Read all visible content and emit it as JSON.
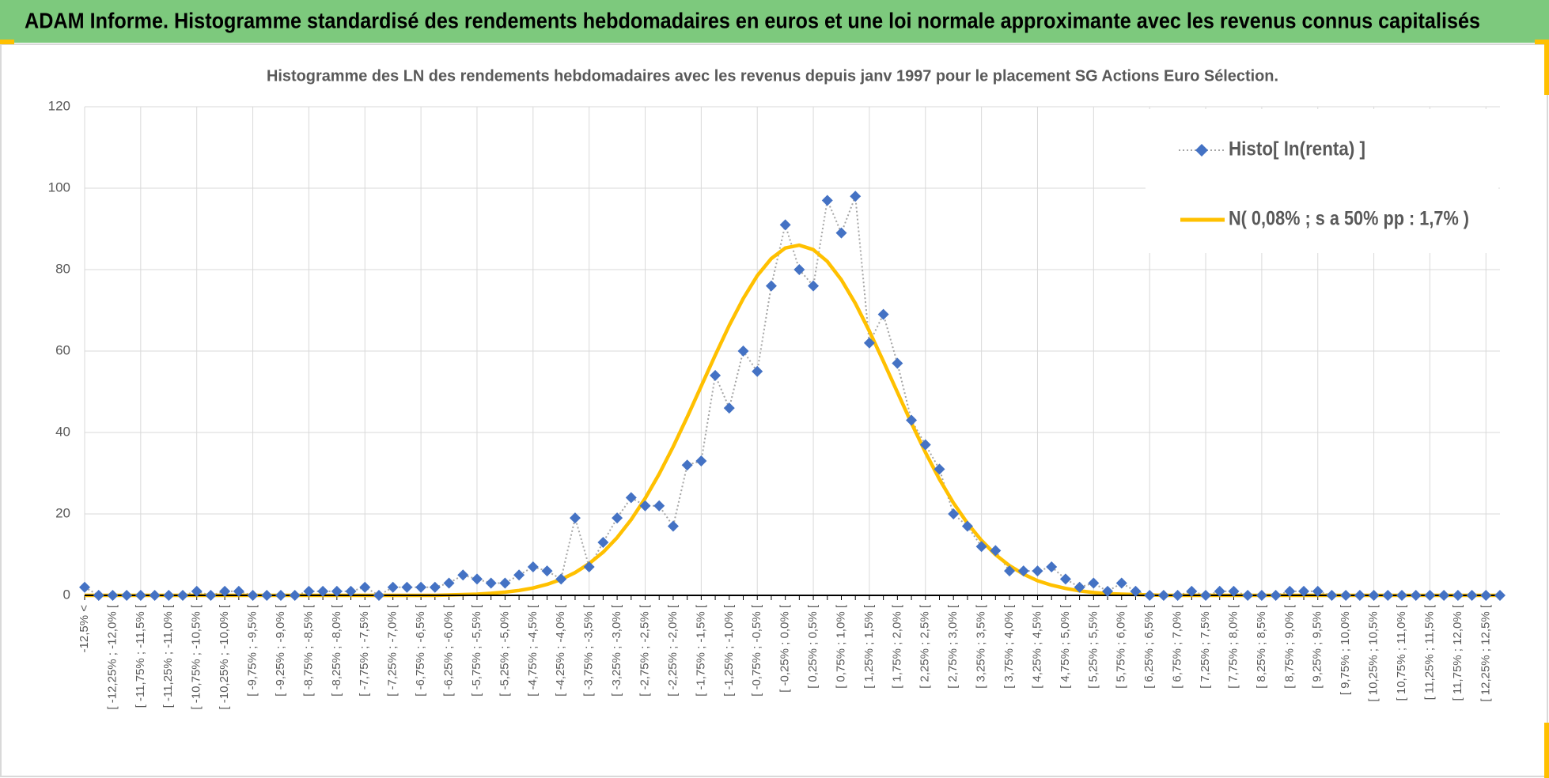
{
  "header": {
    "title": "ADAM Informe. Histogramme standardisé des rendements hebdomadaires en euros et une loi normale approximante avec les revenus connus capitalisés"
  },
  "chart_data": {
    "type": "line",
    "title": "Histogramme  des LN des rendements  hebdomadaires avec les revenus depuis janv 1997 pour le placement SG Actions Euro Sélection.",
    "categories": [
      "-12,5% <",
      null,
      "[ -12,25% ; -12,0% [",
      null,
      "[ -11,75% ; -11,5% [",
      null,
      "[ -11,25% ; -11,0% [",
      null,
      "[ -10,75% ; -10,5% [",
      null,
      "[ -10,25% ; -10,0% [",
      null,
      "[ -9,75% ; -9,5% [",
      null,
      "[ -9,25% ; -9,0% [",
      null,
      "[ -8,75% ; -8,5% [",
      null,
      "[ -8,25% ; -8,0% [",
      null,
      "[ -7,75% ; -7,5% [",
      null,
      "[ -7,25% ; -7,0% [",
      null,
      "[ -6,75% ; -6,5% [",
      null,
      "[ -6,25% ; -6,0% [",
      null,
      "[ -5,75% ; -5,5% [",
      null,
      "[ -5,25% ; -5,0% [",
      null,
      "[ -4,75% ; -4,5% [",
      null,
      "[ -4,25% ; -4,0% [",
      null,
      "[ -3,75% ; -3,5% [",
      null,
      "[ -3,25% ; -3,0% [",
      null,
      "[ -2,75% ; -2,5% [",
      null,
      "[ -2,25% ; -2,0% [",
      null,
      "[ -1,75% ; -1,5% [",
      null,
      "[ -1,25% ; -1,0% [",
      null,
      "[ -0,75% ; -0,5% [",
      null,
      "[ -0,25% ; 0,0% [",
      null,
      "[ 0,25% ; 0,5% [",
      null,
      "[ 0,75% ; 1,0% [",
      null,
      "[ 1,25% ; 1,5% [",
      null,
      "[ 1,75% ; 2,0% [",
      null,
      "[ 2,25% ; 2,5% [",
      null,
      "[ 2,75% ; 3,0% [",
      null,
      "[ 3,25% ; 3,5% [",
      null,
      "[ 3,75% ; 4,0% [",
      null,
      "[ 4,25% ; 4,5% [",
      null,
      "[ 4,75% ; 5,0% [",
      null,
      "[ 5,25% ; 5,5% [",
      null,
      "[ 5,75% ; 6,0% [",
      null,
      "[ 6,25% ; 6,5% [",
      null,
      "[ 6,75% ; 7,0% [",
      null,
      "[ 7,25% ; 7,5% [",
      null,
      "[ 7,75% ; 8,0% [",
      null,
      "[ 8,25% ; 8,5% [",
      null,
      "[ 8,75% ; 9,0% [",
      null,
      "[ 9,25% ; 9,5% [",
      null,
      "[ 9,75% ; 10,0% [",
      null,
      "[ 10,25% ; 10,5% [",
      null,
      "[ 10,75% ; 11,0% [",
      null,
      "[ 11,25% ; 11,5% [",
      null,
      "[ 11,75% ; 12,0% [",
      null,
      "[ 12,25% ; 12,5% [",
      null
    ],
    "series": [
      {
        "name": "Histo[ ln(renta) ]",
        "color": "#4472c4",
        "values": [
          2,
          0,
          0,
          0,
          0,
          0,
          0,
          0,
          1,
          0,
          1,
          1,
          0,
          0,
          0,
          0,
          1,
          1,
          1,
          1,
          2,
          0,
          2,
          2,
          2,
          2,
          3,
          5,
          4,
          3,
          3,
          5,
          7,
          6,
          4,
          19,
          7,
          13,
          19,
          24,
          22,
          22,
          17,
          32,
          33,
          54,
          46,
          60,
          55,
          76,
          91,
          80,
          76,
          97,
          89,
          98,
          62,
          69,
          57,
          43,
          37,
          31,
          20,
          17,
          12,
          11,
          6,
          6,
          6,
          7,
          4,
          2,
          3,
          1,
          3,
          1,
          0,
          0,
          0,
          1,
          0,
          1,
          1,
          0,
          0,
          0,
          1,
          1,
          1,
          0,
          0,
          0,
          0,
          0,
          0,
          0,
          0,
          0,
          0,
          0,
          0,
          0
        ]
      },
      {
        "name": "N( 0,08% ; s a 50% pp : 1,7% )",
        "color": "#ffc000",
        "values": [
          0,
          0,
          0,
          0,
          0,
          0,
          0,
          0,
          0,
          0,
          0,
          0,
          0,
          0,
          0,
          0,
          0,
          0,
          0,
          0,
          0,
          0,
          0,
          0,
          0,
          0,
          0.1,
          0.2,
          0.3,
          0.5,
          0.8,
          1.2,
          1.8,
          2.7,
          3.9,
          5.6,
          7.8,
          10.6,
          14.2,
          18.6,
          23.8,
          29.8,
          36.5,
          43.8,
          51.4,
          59,
          66.3,
          72.9,
          78.5,
          82.7,
          85.3,
          86,
          84.9,
          82,
          77.5,
          71.7,
          64.9,
          57.5,
          49.9,
          42.3,
          35.1,
          28.5,
          22.7,
          17.7,
          13.5,
          10,
          7.3,
          5.2,
          3.6,
          2.5,
          1.7,
          1.1,
          0.7,
          0.4,
          0.3,
          0.2,
          0.1,
          0,
          0,
          0,
          0,
          0,
          0,
          0,
          0,
          0,
          0,
          0,
          0,
          0,
          0,
          0,
          0,
          0,
          0,
          0,
          0,
          0,
          0,
          0,
          0,
          0
        ]
      }
    ],
    "ylim": [
      0,
      120
    ],
    "yticks": [
      0,
      20,
      40,
      60,
      80,
      100,
      120
    ],
    "grid": true,
    "legend": "upper right"
  }
}
